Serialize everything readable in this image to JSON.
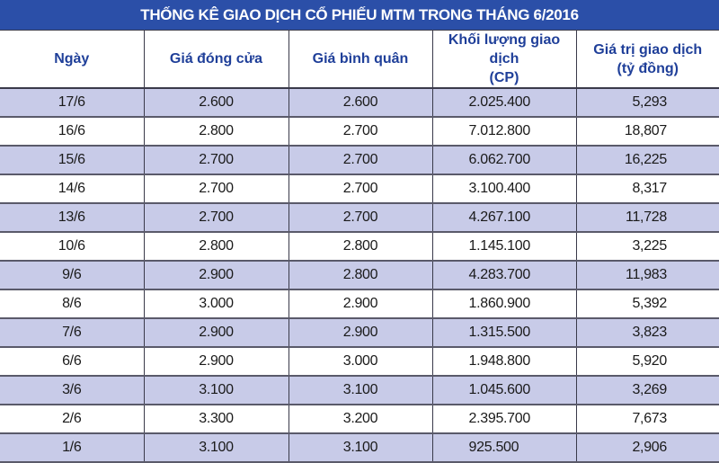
{
  "title": "THỐNG KÊ GIAO DỊCH CỔ PHIẾU MTM TRONG THÁNG 6/2016",
  "headers": [
    {
      "line1": "Ngày",
      "line2": ""
    },
    {
      "line1": "Giá đóng cửa",
      "line2": ""
    },
    {
      "line1": "Giá bình quân",
      "line2": ""
    },
    {
      "line1": "Khối lượng giao dịch",
      "line2": "(CP)"
    },
    {
      "line1": "Giá trị giao dịch",
      "line2": "(tỷ đồng)"
    }
  ],
  "rows": [
    {
      "date": "17/6",
      "close": "2.600",
      "avg": "2.600",
      "volume": "2.025.400",
      "value": "5,293"
    },
    {
      "date": "16/6",
      "close": "2.800",
      "avg": "2.700",
      "volume": "7.012.800",
      "value": "18,807"
    },
    {
      "date": "15/6",
      "close": "2.700",
      "avg": "2.700",
      "volume": "6.062.700",
      "value": "16,225"
    },
    {
      "date": "14/6",
      "close": "2.700",
      "avg": "2.700",
      "volume": "3.100.400",
      "value": "8,317"
    },
    {
      "date": "13/6",
      "close": "2.700",
      "avg": "2.700",
      "volume": "4.267.100",
      "value": "11,728"
    },
    {
      "date": "10/6",
      "close": "2.800",
      "avg": "2.800",
      "volume": "1.145.100",
      "value": "3,225"
    },
    {
      "date": "9/6",
      "close": "2.900",
      "avg": "2.800",
      "volume": "4.283.700",
      "value": "11,983"
    },
    {
      "date": "8/6",
      "close": "3.000",
      "avg": "2.900",
      "volume": "1.860.900",
      "value": "5,392"
    },
    {
      "date": "7/6",
      "close": "2.900",
      "avg": "2.900",
      "volume": "1.315.500",
      "value": "3,823"
    },
    {
      "date": "6/6",
      "close": "2.900",
      "avg": "3.000",
      "volume": "1.948.800",
      "value": "5,920"
    },
    {
      "date": "3/6",
      "close": "3.100",
      "avg": "3.100",
      "volume": "1.045.600",
      "value": "3,269"
    },
    {
      "date": "2/6",
      "close": "3.300",
      "avg": "3.200",
      "volume": "2.395.700",
      "value": "7,673"
    },
    {
      "date": "1/6",
      "close": "3.100",
      "avg": "3.100",
      "volume": "925.500",
      "value": "2,906"
    }
  ],
  "colors": {
    "title_bg": "#2b4fa8",
    "header_text": "#1f3f99",
    "row_alt": "#c8cbe8"
  }
}
